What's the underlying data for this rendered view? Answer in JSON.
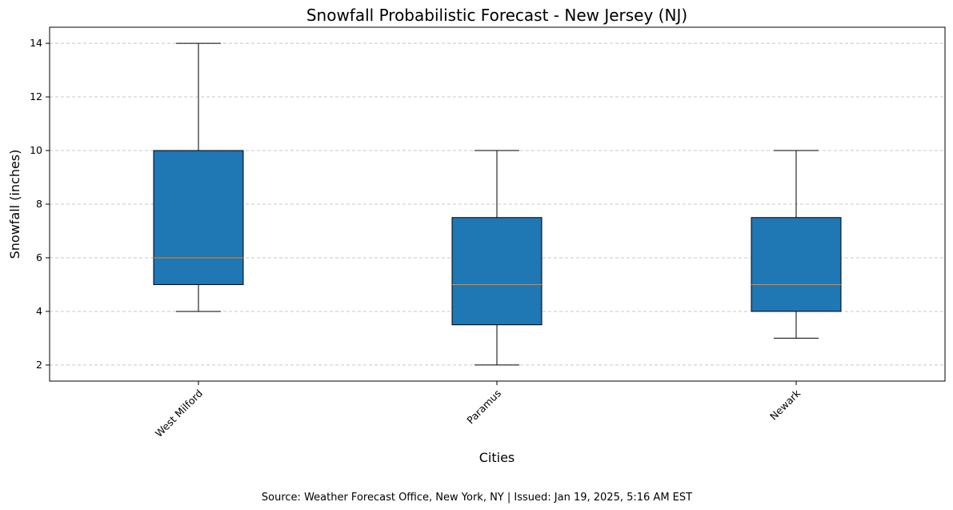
{
  "chart_data": {
    "type": "box",
    "title": "Snowfall Probabilistic Forecast - New Jersey (NJ)",
    "xlabel": "Cities",
    "ylabel": "Snowfall (inches)",
    "caption": "Source: Weather Forecast Office, New York, NY | Issued: Jan 19, 2025, 5:16 AM EST",
    "categories": [
      "West Milford",
      "Paramus",
      "Newark"
    ],
    "boxes": [
      {
        "category": "West Milford",
        "min": 4,
        "q1": 5,
        "median": 6,
        "q3": 10,
        "max": 14
      },
      {
        "category": "Paramus",
        "min": 2,
        "q1": 3.5,
        "median": 5,
        "q3": 7.5,
        "max": 10
      },
      {
        "category": "Newark",
        "min": 3,
        "q1": 4,
        "median": 5,
        "q3": 7.5,
        "max": 10
      }
    ],
    "yticks": [
      2,
      4,
      6,
      8,
      10,
      12,
      14
    ],
    "ylim": [
      1.4,
      14.6
    ],
    "grid": "horizontal dashed",
    "colors": {
      "box_fill": "#1f77b4",
      "median": "#ff7f0e",
      "grid": "#c8c8c8",
      "edge": "#000000"
    }
  }
}
